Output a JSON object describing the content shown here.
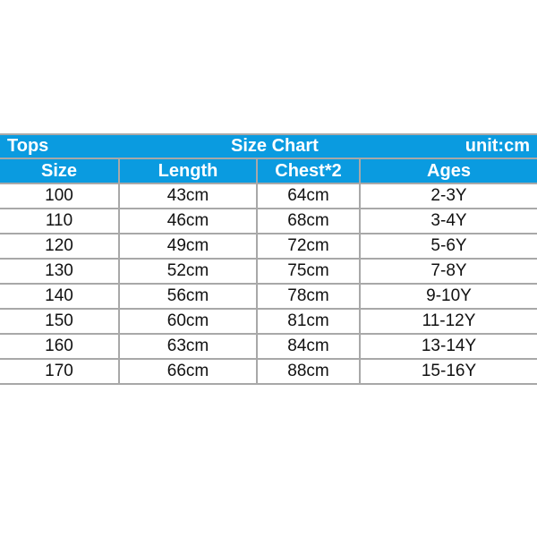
{
  "title": {
    "left": "Tops",
    "center": "Size Chart",
    "right": "unit:cm"
  },
  "columns": [
    "Size",
    "Length",
    "Chest*2",
    "Ages"
  ],
  "rows": [
    [
      "100",
      "43cm",
      "64cm",
      "2-3Y"
    ],
    [
      "110",
      "46cm",
      "68cm",
      "3-4Y"
    ],
    [
      "120",
      "49cm",
      "72cm",
      "5-6Y"
    ],
    [
      "130",
      "52cm",
      "75cm",
      "7-8Y"
    ],
    [
      "140",
      "56cm",
      "78cm",
      "9-10Y"
    ],
    [
      "150",
      "60cm",
      "81cm",
      "11-12Y"
    ],
    [
      "160",
      "63cm",
      "84cm",
      "13-14Y"
    ],
    [
      "170",
      "66cm",
      "88cm",
      "15-16Y"
    ]
  ],
  "colors": {
    "header": "#0a9be0",
    "grid": "#a8a8a8"
  }
}
